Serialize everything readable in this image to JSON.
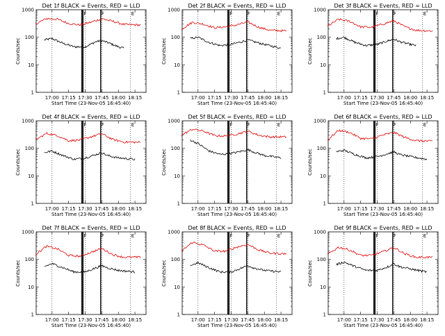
{
  "chart_data": {
    "type": "line",
    "y_scale": "log",
    "ylim": [
      1,
      1000
    ],
    "xlim": [
      "16:45:40",
      "18:25"
    ],
    "x_ticks": [
      "17:00",
      "17:15",
      "17:30",
      "17:45",
      "18:00",
      "18:15"
    ],
    "y_ticks": [
      "1",
      "10",
      "100",
      "1000"
    ],
    "ylabel": "Counts/sec",
    "xlabel": "Start Time (23-Nov-05 16:45:40)",
    "dotted_vlines": [
      "17:00",
      "17:30",
      "17:45",
      "18:11"
    ],
    "solid_vlines": [
      "17:27",
      "17:28",
      "17:44"
    ],
    "bracket_labels": [
      {
        "label": "F",
        "time": "17:28"
      },
      {
        "label": "F",
        "time": "17:44"
      },
      {
        "label": "E",
        "time": "18:11"
      }
    ],
    "colors": {
      "events": "#000000",
      "lld": "#dd0000"
    },
    "series_desc": "BLACK = Events, RED = LLD",
    "panels": [
      {
        "title": "Det 1f BLACK = Events, RED = LLD",
        "series": [
          {
            "name": "Events",
            "color": "#000000",
            "x": [
              "16:53",
              "17:00",
              "17:10",
              "17:20",
              "17:30",
              "17:40",
              "17:45",
              "17:50",
              "18:00",
              "18:05"
            ],
            "values": [
              80,
              90,
              60,
              45,
              45,
              70,
              75,
              65,
              45,
              40
            ]
          },
          {
            "name": "LLD",
            "color": "#dd0000",
            "x": [
              "16:45",
              "16:55",
              "17:05",
              "17:15",
              "17:25",
              "17:35",
              "17:45",
              "17:55",
              "18:05",
              "18:20"
            ],
            "values": [
              300,
              480,
              450,
              320,
              280,
              350,
              470,
              380,
              290,
              280
            ]
          }
        ]
      },
      {
        "title": "Det 2f BLACK = Events, RED = LLD",
        "series": [
          {
            "name": "Events",
            "color": "#000000",
            "x": [
              "16:53",
              "17:00",
              "17:10",
              "17:20",
              "17:30",
              "17:40",
              "17:45",
              "17:50",
              "18:00",
              "18:15"
            ],
            "values": [
              90,
              100,
              65,
              50,
              55,
              70,
              80,
              70,
              55,
              40
            ]
          },
          {
            "name": "LLD",
            "color": "#dd0000",
            "x": [
              "16:45",
              "16:55",
              "17:05",
              "17:15",
              "17:25",
              "17:35",
              "17:45",
              "17:55",
              "18:05",
              "18:20"
            ],
            "values": [
              200,
              350,
              300,
              220,
              240,
              280,
              360,
              230,
              180,
              170
            ]
          }
        ]
      },
      {
        "title": "Det 3f BLACK = Events, RED = LLD",
        "series": [
          {
            "name": "Events",
            "color": "#000000",
            "x": [
              "16:53",
              "17:00",
              "17:10",
              "17:20",
              "17:30",
              "17:40",
              "17:45",
              "17:50",
              "18:00",
              "18:05"
            ],
            "values": [
              90,
              100,
              65,
              50,
              55,
              75,
              85,
              70,
              55,
              50
            ]
          },
          {
            "name": "LLD",
            "color": "#dd0000",
            "x": [
              "16:45",
              "16:55",
              "17:05",
              "17:15",
              "17:25",
              "17:35",
              "17:45",
              "17:55",
              "18:05",
              "18:20"
            ],
            "values": [
              250,
              450,
              380,
              240,
              230,
              300,
              400,
              240,
              180,
              170
            ]
          }
        ]
      },
      {
        "title": "Det 4f BLACK = Events, RED = LLD",
        "series": [
          {
            "name": "Events",
            "color": "#000000",
            "x": [
              "16:53",
              "17:00",
              "17:10",
              "17:20",
              "17:30",
              "17:40",
              "17:45",
              "17:50",
              "18:00",
              "18:15"
            ],
            "values": [
              70,
              80,
              55,
              40,
              45,
              60,
              70,
              55,
              45,
              40
            ]
          },
          {
            "name": "LLD",
            "color": "#dd0000",
            "x": [
              "16:45",
              "16:55",
              "17:05",
              "17:15",
              "17:25",
              "17:35",
              "17:45",
              "17:55",
              "18:05",
              "18:20"
            ],
            "values": [
              200,
              350,
              290,
              190,
              200,
              260,
              340,
              210,
              170,
              165
            ]
          }
        ]
      },
      {
        "title": "Det 5f BLACK = Events, RED = LLD",
        "series": [
          {
            "name": "Events",
            "color": "#000000",
            "x": [
              "16:53",
              "17:00",
              "17:10",
              "17:20",
              "17:30",
              "17:40",
              "17:45",
              "17:50",
              "18:00",
              "18:15"
            ],
            "values": [
              200,
              150,
              80,
              60,
              65,
              80,
              90,
              75,
              55,
              45
            ]
          },
          {
            "name": "LLD",
            "color": "#dd0000",
            "x": [
              "16:45",
              "16:55",
              "17:05",
              "17:15",
              "17:25",
              "17:35",
              "17:45",
              "17:55",
              "18:05",
              "18:20"
            ],
            "values": [
              300,
              500,
              420,
              290,
              280,
              330,
              420,
              300,
              260,
              260
            ]
          }
        ]
      },
      {
        "title": "Det 6f BLACK = Events, RED = LLD",
        "series": [
          {
            "name": "Events",
            "color": "#000000",
            "x": [
              "16:53",
              "17:00",
              "17:10",
              "17:20",
              "17:30",
              "17:40",
              "17:45",
              "17:50",
              "18:00",
              "18:15"
            ],
            "values": [
              75,
              85,
              60,
              45,
              50,
              65,
              75,
              60,
              50,
              40
            ]
          },
          {
            "name": "LLD",
            "color": "#dd0000",
            "x": [
              "16:45",
              "16:55",
              "17:05",
              "17:15",
              "17:25",
              "17:35",
              "17:45",
              "17:55",
              "18:05",
              "18:20"
            ],
            "values": [
              200,
              450,
              380,
              230,
              220,
              300,
              380,
              250,
              190,
              180
            ]
          }
        ]
      },
      {
        "title": "Det 7f BLACK = Events, RED = LLD",
        "series": [
          {
            "name": "Events",
            "color": "#000000",
            "x": [
              "16:53",
              "17:00",
              "17:10",
              "17:20",
              "17:30",
              "17:40",
              "17:45",
              "17:50",
              "18:00",
              "18:15"
            ],
            "values": [
              55,
              70,
              50,
              35,
              35,
              50,
              60,
              50,
              40,
              35
            ]
          },
          {
            "name": "LLD",
            "color": "#dd0000",
            "x": [
              "16:45",
              "16:55",
              "17:05",
              "17:15",
              "17:25",
              "17:35",
              "17:45",
              "17:55",
              "18:05",
              "18:20"
            ],
            "values": [
              150,
              300,
              240,
              140,
              130,
              180,
              250,
              150,
              120,
              120
            ]
          }
        ]
      },
      {
        "title": "Det 8f BLACK = Events, RED = LLD",
        "series": [
          {
            "name": "Events",
            "color": "#000000",
            "x": [
              "16:53",
              "17:00",
              "17:10",
              "17:20",
              "17:30",
              "17:40",
              "17:45",
              "17:50",
              "18:00",
              "18:15"
            ],
            "values": [
              60,
              75,
              50,
              35,
              35,
              50,
              60,
              50,
              40,
              35
            ]
          },
          {
            "name": "LLD",
            "color": "#dd0000",
            "x": [
              "16:45",
              "16:55",
              "17:05",
              "17:15",
              "17:25",
              "17:35",
              "17:45",
              "17:55",
              "18:05",
              "18:20"
            ],
            "values": [
              200,
              420,
              330,
              200,
              200,
              280,
              350,
              220,
              170,
              160
            ]
          }
        ]
      },
      {
        "title": "Det 9f BLACK = Events, RED = LLD",
        "series": [
          {
            "name": "Events",
            "color": "#000000",
            "x": [
              "16:53",
              "17:00",
              "17:10",
              "17:20",
              "17:30",
              "17:40",
              "17:45",
              "17:50",
              "18:00",
              "18:15"
            ],
            "values": [
              65,
              80,
              55,
              40,
              40,
              55,
              70,
              55,
              45,
              35
            ]
          },
          {
            "name": "LLD",
            "color": "#dd0000",
            "x": [
              "16:45",
              "16:55",
              "17:05",
              "17:15",
              "17:25",
              "17:35",
              "17:45",
              "17:55",
              "18:05",
              "18:20"
            ],
            "values": [
              150,
              280,
              220,
              140,
              140,
              190,
              270,
              160,
              120,
              120
            ]
          }
        ]
      }
    ]
  }
}
